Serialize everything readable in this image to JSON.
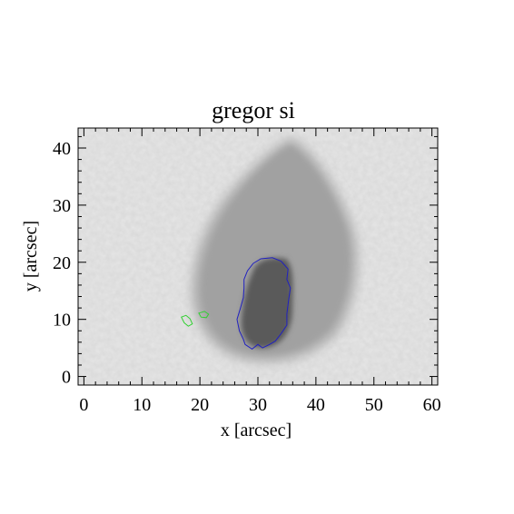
{
  "title": "gregor si",
  "xlabel": "x [arcsec]",
  "ylabel": "y [arcsec]",
  "xlim": [
    -1,
    61
  ],
  "ylim": [
    -1.5,
    43.5
  ],
  "xticks": [
    0,
    10,
    20,
    30,
    40,
    50,
    60
  ],
  "yticks": [
    0,
    10,
    20,
    30,
    40
  ],
  "image": {
    "description_free": true,
    "colormap": "grayscale",
    "background_color": "#e6e6e6",
    "penumbra_color": "#a8a8a8",
    "umbra_color": "#5a5a5a"
  },
  "contours": {
    "umbra": {
      "color": "#2020c0",
      "points": [
        [
          29.2,
          19.8
        ],
        [
          30.5,
          20.6
        ],
        [
          32.5,
          20.8
        ],
        [
          34.0,
          20.2
        ],
        [
          35.2,
          18.8
        ],
        [
          35.0,
          17.0
        ],
        [
          35.6,
          15.5
        ],
        [
          35.3,
          13.5
        ],
        [
          35.0,
          11.0
        ],
        [
          35.0,
          9.0
        ],
        [
          34.0,
          7.5
        ],
        [
          33.0,
          6.2
        ],
        [
          32.0,
          5.6
        ],
        [
          30.8,
          5.0
        ],
        [
          30.0,
          5.6
        ],
        [
          29.0,
          4.8
        ],
        [
          27.8,
          5.6
        ],
        [
          27.5,
          6.5
        ],
        [
          26.8,
          8.0
        ],
        [
          26.4,
          10.0
        ],
        [
          27.0,
          12.0
        ],
        [
          27.5,
          13.8
        ],
        [
          27.6,
          15.5
        ],
        [
          27.6,
          17.0
        ],
        [
          28.2,
          18.5
        ],
        [
          29.2,
          19.8
        ]
      ]
    },
    "pores": {
      "color": "#30d030",
      "shapes": [
        [
          [
            16.8,
            10.4
          ],
          [
            17.6,
            10.7
          ],
          [
            18.3,
            10.1
          ],
          [
            18.7,
            9.2
          ],
          [
            18.0,
            8.8
          ],
          [
            17.3,
            9.4
          ],
          [
            16.8,
            10.4
          ]
        ],
        [
          [
            19.8,
            11.1
          ],
          [
            20.8,
            11.4
          ],
          [
            21.5,
            10.9
          ],
          [
            21.1,
            10.3
          ],
          [
            20.2,
            10.4
          ],
          [
            19.8,
            11.1
          ]
        ]
      ]
    }
  }
}
